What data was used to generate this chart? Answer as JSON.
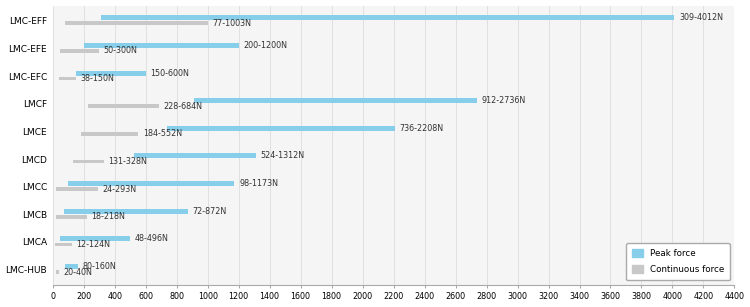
{
  "categories": [
    "LMC-EFF",
    "LMC-EFE",
    "LMC-EFC",
    "LMCF",
    "LMCE",
    "LMCD",
    "LMCC",
    "LMCB",
    "LMCA",
    "LMC-HUB"
  ],
  "peak_force": [
    4012,
    1200,
    600,
    2736,
    2208,
    1312,
    1173,
    872,
    496,
    160
  ],
  "peak_force_start": [
    309,
    200,
    150,
    912,
    736,
    524,
    98,
    72,
    48,
    80
  ],
  "continuous_force": [
    1003,
    300,
    150,
    684,
    552,
    328,
    293,
    218,
    124,
    40
  ],
  "continuous_force_start": [
    77,
    50,
    38,
    228,
    184,
    131,
    24,
    18,
    12,
    20
  ],
  "peak_labels": [
    "309-4012N",
    "200-1200N",
    "150-600N",
    "912-2736N",
    "736-2208N",
    "524-1312N",
    "98-1173N",
    "72-872N",
    "48-496N",
    "80-160N"
  ],
  "cont_labels": [
    "77-1003N",
    "50-300N",
    "38-150N",
    "228-684N",
    "184-552N",
    "131-328N",
    "24-293N",
    "18-218N",
    "12-124N",
    "20-40N"
  ],
  "peak_color": "#87CEEB",
  "cont_color": "#C8C8C8",
  "xlim": [
    0,
    4400
  ],
  "xticks": [
    0,
    200,
    400,
    600,
    800,
    1000,
    1200,
    1400,
    1600,
    1800,
    2000,
    2200,
    2400,
    2600,
    2800,
    3000,
    3200,
    3400,
    3600,
    3800,
    4000,
    4200,
    4400
  ],
  "peak_bar_height": 0.18,
  "cont_bar_height": 0.14,
  "figsize": [
    7.5,
    3.07
  ],
  "dpi": 100,
  "legend_peak": "Peak force",
  "legend_cont": "Continuous force",
  "grid_color": "#D8D8D8",
  "label_fontsize": 5.8,
  "tick_fontsize": 5.8,
  "ytick_fontsize": 6.5,
  "bg_color": "#F5F5F5"
}
